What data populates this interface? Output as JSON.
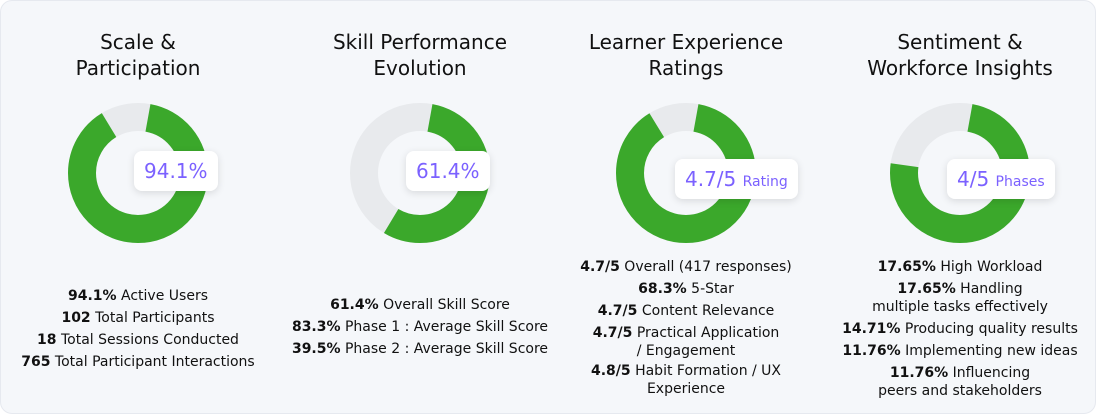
{
  "colors": {
    "accent_green": "#3ba82b",
    "track_grey": "#e8eaed",
    "badge_purple": "#7b61ff"
  },
  "panels": [
    {
      "title_lines": [
        "Scale &",
        "Participation"
      ],
      "donut_fraction": 0.941,
      "badge": {
        "value": "94.1%",
        "unit": ""
      },
      "stats": [
        {
          "value": "94.1%",
          "label": " Active Users"
        },
        {
          "value": "102",
          "label": " Total Participants"
        },
        {
          "value": "18",
          "label": " Total Sessions Conducted"
        },
        {
          "value": "765",
          "label": " Total Participant Interactions"
        }
      ]
    },
    {
      "title_lines": [
        "Skill Performance",
        "Evolution"
      ],
      "donut_fraction": 0.614,
      "badge": {
        "value": "61.4%",
        "unit": ""
      },
      "stats": [
        {
          "value": "61.4%",
          "label": " Overall Skill Score"
        },
        {
          "value": "83.3%",
          "label": " Phase 1 : Average Skill Score"
        },
        {
          "value": "39.5%",
          "label": " Phase 2 : Average Skill Score"
        }
      ]
    },
    {
      "title_lines": [
        "Learner Experience",
        "Ratings"
      ],
      "donut_fraction": 0.94,
      "badge": {
        "value": "4.7/5",
        "unit": "Rating"
      },
      "stats": [
        {
          "value": "4.7/5",
          "label": " Overall (417 responses)"
        },
        {
          "value": "68.3%",
          "label": " 5-Star"
        },
        {
          "value": "4.7/5",
          "label": " Content Relevance"
        },
        {
          "value": "4.7/5",
          "label": " Practical Application / Engagement"
        },
        {
          "value": "4.8/5",
          "label": " Habit Formation / UX Experience"
        }
      ]
    },
    {
      "title_lines": [
        "Sentiment &",
        "Workforce Insights"
      ],
      "donut_fraction": 0.8,
      "badge": {
        "value": "4/5",
        "unit": "Phases"
      },
      "stats": [
        {
          "value": "17.65%",
          "label": " High Workload"
        },
        {
          "value": "17.65%",
          "label": " Handling multiple tasks effectively"
        },
        {
          "value": "14.71%",
          "label": " Producing quality results"
        },
        {
          "value": "11.76%",
          "label": " Implementing new ideas"
        },
        {
          "value": "11.76%",
          "label": " Influencing peers and stakeholders"
        }
      ]
    }
  ]
}
